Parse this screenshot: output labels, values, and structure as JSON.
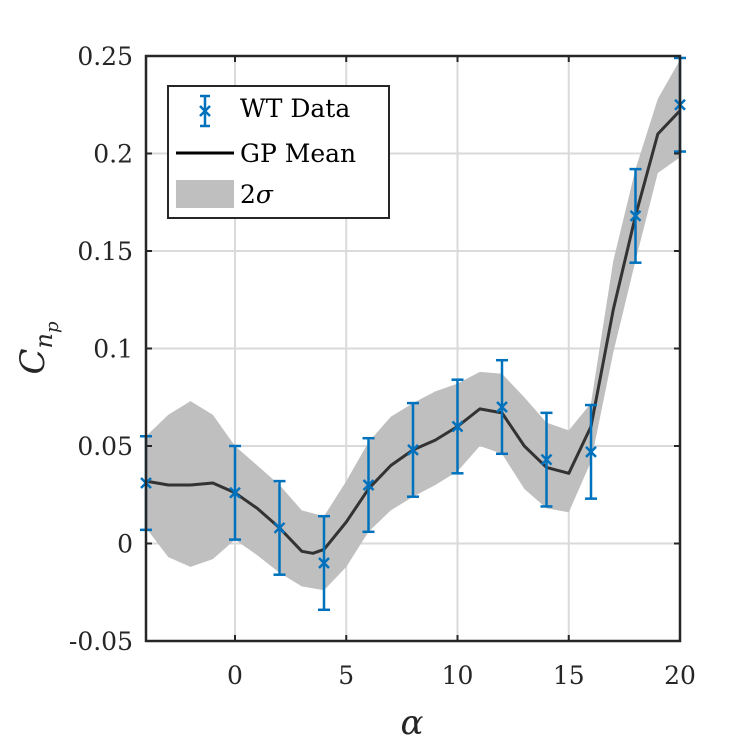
{
  "chart_data": {
    "type": "line",
    "xlabel": "α",
    "ylabel": {
      "base": "C",
      "sub": "n",
      "subsub": "p"
    },
    "xlim": [
      -4,
      20
    ],
    "ylim": [
      -0.05,
      0.25
    ],
    "xticks": [
      0,
      5,
      10,
      15,
      20
    ],
    "xtick_labels": [
      "0",
      "5",
      "10",
      "15",
      "20"
    ],
    "yticks": [
      -0.05,
      0,
      0.05,
      0.1,
      0.15,
      0.2,
      0.25
    ],
    "ytick_labels": [
      "-0.05",
      "0",
      "0.05",
      "0.1",
      "0.15",
      "0.2",
      "0.25"
    ],
    "grid": true,
    "legend_position": "top-left",
    "legend": {
      "wt": "WT Data",
      "gp": "GP Mean",
      "band_prefix": "2",
      "band_symbol": "σ"
    },
    "colors": {
      "wt": "#0072BD",
      "gp": "#333333",
      "band": "#BFBFBF",
      "axes": "#262626",
      "grid": "#DADADA"
    },
    "series": [
      {
        "name": "WT Data",
        "kind": "errorbar",
        "x": [
          -4,
          0,
          2,
          4,
          6,
          8,
          10,
          12,
          14,
          16,
          18,
          20
        ],
        "y": [
          0.031,
          0.026,
          0.008,
          -0.01,
          0.03,
          0.048,
          0.06,
          0.07,
          0.043,
          0.047,
          0.168,
          0.225
        ],
        "err": [
          0.024,
          0.024,
          0.024,
          0.024,
          0.024,
          0.024,
          0.024,
          0.024,
          0.024,
          0.024,
          0.024,
          0.024
        ]
      },
      {
        "name": "GP Mean",
        "kind": "line",
        "x": [
          -4,
          -3,
          -2,
          -1,
          0,
          1,
          2,
          3,
          3.5,
          4,
          5,
          6,
          7,
          8,
          9,
          10,
          11,
          12,
          13,
          14,
          15,
          16,
          17,
          18,
          19,
          20
        ],
        "y": [
          0.032,
          0.03,
          0.03,
          0.031,
          0.026,
          0.018,
          0.008,
          -0.004,
          -0.005,
          -0.003,
          0.011,
          0.028,
          0.04,
          0.048,
          0.053,
          0.06,
          0.069,
          0.067,
          0.05,
          0.039,
          0.036,
          0.06,
          0.12,
          0.168,
          0.21,
          0.222
        ]
      },
      {
        "name": "2σ",
        "kind": "band",
        "x": [
          -4,
          -3,
          -2,
          -1,
          0,
          1,
          2,
          3,
          4,
          5,
          6,
          7,
          8,
          9,
          10,
          11,
          12,
          13,
          14,
          15,
          16,
          17,
          18,
          19,
          20
        ],
        "upper": [
          0.055,
          0.066,
          0.073,
          0.066,
          0.05,
          0.04,
          0.03,
          0.017,
          0.014,
          0.032,
          0.052,
          0.065,
          0.072,
          0.078,
          0.082,
          0.088,
          0.087,
          0.075,
          0.062,
          0.058,
          0.072,
          0.145,
          0.192,
          0.228,
          0.248
        ],
        "lower": [
          0.008,
          -0.007,
          -0.012,
          -0.008,
          0.002,
          -0.006,
          -0.015,
          -0.022,
          -0.024,
          -0.012,
          0.006,
          0.017,
          0.024,
          0.03,
          0.037,
          0.05,
          0.046,
          0.028,
          0.018,
          0.016,
          0.042,
          0.098,
          0.145,
          0.19,
          0.198
        ]
      }
    ]
  }
}
